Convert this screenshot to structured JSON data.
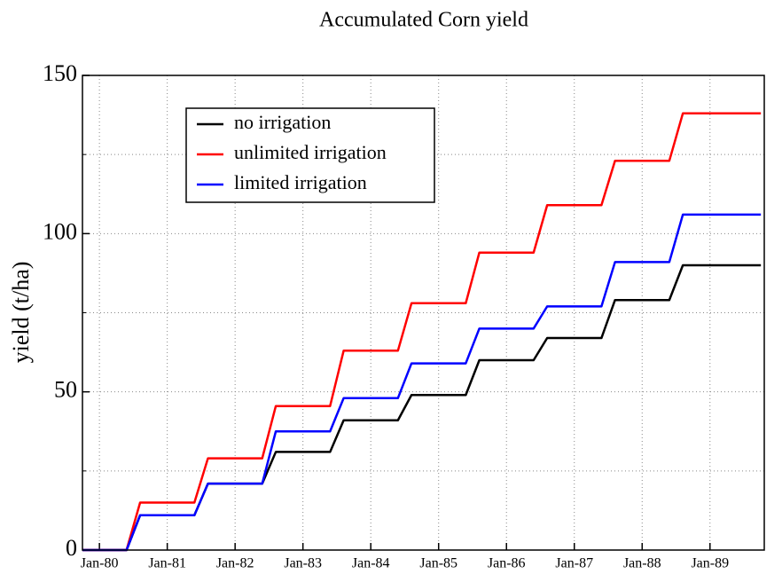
{
  "chart_data": {
    "type": "line",
    "title": "Accumulated Corn yield",
    "y_label": "yield (t/ha)",
    "x": [
      1979.75,
      1980.4,
      1980.5,
      1980.6,
      1981.4,
      1981.5,
      1981.6,
      1982.4,
      1982.5,
      1982.6,
      1983.4,
      1983.5,
      1983.6,
      1984.4,
      1984.5,
      1984.6,
      1985.4,
      1985.5,
      1985.6,
      1986.4,
      1986.5,
      1986.6,
      1987.4,
      1987.5,
      1987.6,
      1988.4,
      1988.5,
      1988.6,
      1989.75
    ],
    "series": [
      {
        "name": "no irrigation",
        "color": "#000000",
        "values": [
          0,
          0,
          5.5,
          11,
          11,
          16,
          21,
          21,
          26,
          31,
          31,
          36,
          41,
          41,
          45,
          49,
          49,
          54.5,
          60,
          60,
          63.5,
          67,
          67,
          73,
          79,
          79,
          84.5,
          90,
          90
        ]
      },
      {
        "name": "unlimited irrigation",
        "color": "#ff0000",
        "values": [
          0,
          0,
          7.5,
          15,
          15,
          22,
          29,
          29,
          37.25,
          45.5,
          45.5,
          54.25,
          63,
          63,
          70.5,
          78,
          78,
          86,
          94,
          94,
          101.5,
          109,
          109,
          116,
          123,
          123,
          130.5,
          138,
          138
        ]
      },
      {
        "name": "limited irrigation",
        "color": "#0000ff",
        "values": [
          0,
          0,
          5.5,
          11,
          11,
          16,
          21,
          21,
          29.25,
          37.5,
          37.5,
          42.75,
          48,
          48,
          53.5,
          59,
          59,
          64.5,
          70,
          70,
          73.5,
          77,
          77,
          84,
          91,
          91,
          98.5,
          106,
          106
        ]
      }
    ],
    "xlim": [
      1979.75,
      1989.8
    ],
    "xticks": [
      {
        "value": 1980,
        "label": "Jan-80"
      },
      {
        "value": 1981,
        "label": "Jan-81"
      },
      {
        "value": 1982,
        "label": "Jan-82"
      },
      {
        "value": 1983,
        "label": "Jan-83"
      },
      {
        "value": 1984,
        "label": "Jan-84"
      },
      {
        "value": 1985,
        "label": "Jan-85"
      },
      {
        "value": 1986,
        "label": "Jan-86"
      },
      {
        "value": 1987,
        "label": "Jan-87"
      },
      {
        "value": 1988,
        "label": "Jan-88"
      },
      {
        "value": 1989,
        "label": "Jan-89"
      }
    ],
    "ylim": [
      0,
      150
    ],
    "yticks": [
      0,
      50,
      100,
      150
    ],
    "yminor": [
      25,
      75,
      125
    ],
    "grid": true,
    "legend": "upper left"
  }
}
